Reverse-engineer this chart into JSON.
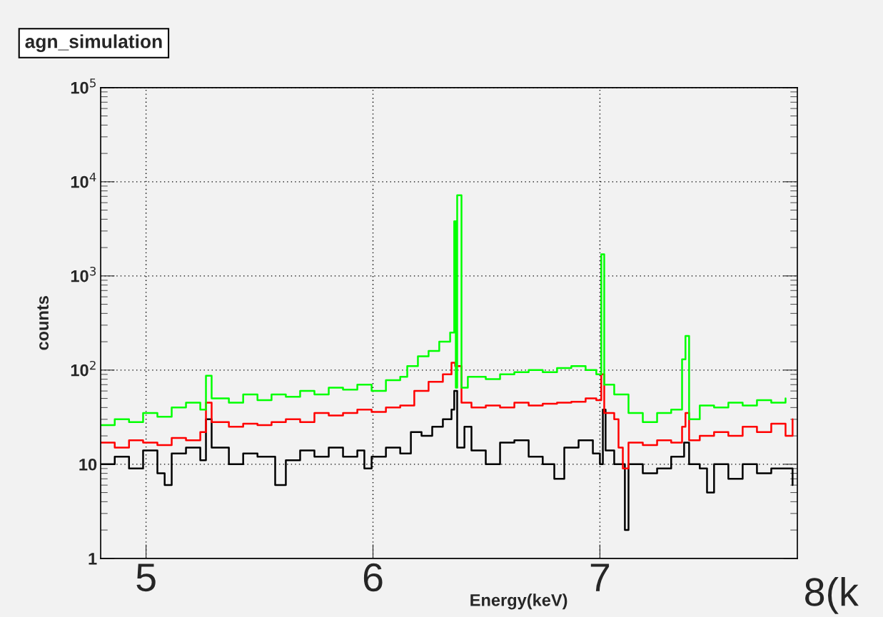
{
  "chart_data": {
    "type": "step",
    "title": "agn_simulation",
    "xlabel": "Energy(keV)",
    "ylabel": "counts",
    "xlim": [
      4.8,
      7.87
    ],
    "xticks": [
      5,
      6,
      7
    ],
    "ylim": [
      1,
      100000
    ],
    "yticks": [
      1,
      10,
      {
        "value": 100,
        "label": "10$^{2}$"
      },
      {
        "value": 1000,
        "label": "10$^{3}$"
      },
      {
        "value": 10000,
        "label": "10$^{4}$"
      },
      {
        "value": 100000,
        "label": "10$^{5}$"
      }
    ],
    "log": "y",
    "grid": true,
    "annotations": [
      "8(k"
    ],
    "series": [
      {
        "color": "#000000",
        "x": [
          4.802,
          4.862,
          4.925,
          4.987,
          5.05,
          5.082,
          5.113,
          5.176,
          5.239,
          5.264,
          5.289,
          5.365,
          5.428,
          5.491,
          5.569,
          5.616,
          5.679,
          5.742,
          5.805,
          5.868,
          5.931,
          5.962,
          5.994,
          6.057,
          6.12,
          6.167,
          6.214,
          6.261,
          6.308,
          6.346,
          6.358,
          6.371,
          6.403,
          6.434,
          6.497,
          6.56,
          6.623,
          6.686,
          6.748,
          6.799,
          6.843,
          6.906,
          6.969,
          7.0,
          7.013,
          7.025,
          7.063,
          7.11,
          7.126,
          7.189,
          7.252,
          7.314,
          7.371,
          7.393,
          7.44,
          7.472,
          7.503,
          7.566,
          7.629,
          7.692,
          7.755,
          7.818,
          7.849
        ],
        "values": [
          10,
          12,
          9,
          14,
          8,
          6,
          13,
          15,
          11,
          30,
          15,
          10,
          13,
          12,
          6,
          11,
          14,
          12,
          15,
          12,
          14,
          9,
          12,
          15,
          13,
          22,
          20,
          25,
          30,
          38,
          60,
          15,
          25,
          14,
          10,
          17,
          18,
          12,
          10,
          7,
          15,
          18,
          13,
          10,
          38,
          14,
          10,
          2,
          10,
          8,
          9,
          12,
          17,
          10,
          9,
          5,
          10,
          7,
          10,
          8,
          9,
          9,
          6
        ]
      },
      {
        "color": "#ff0000",
        "x": [
          4.802,
          4.862,
          4.925,
          4.987,
          5.05,
          5.113,
          5.176,
          5.239,
          5.264,
          5.289,
          5.365,
          5.428,
          5.491,
          5.553,
          5.616,
          5.679,
          5.742,
          5.805,
          5.868,
          5.931,
          5.994,
          6.057,
          6.12,
          6.182,
          6.245,
          6.308,
          6.346,
          6.362,
          6.39,
          6.434,
          6.497,
          6.56,
          6.623,
          6.686,
          6.748,
          6.811,
          6.874,
          6.937,
          6.984,
          7.006,
          7.019,
          7.063,
          7.082,
          7.101,
          7.126,
          7.189,
          7.252,
          7.314,
          7.362,
          7.377,
          7.393,
          7.44,
          7.503,
          7.566,
          7.629,
          7.692,
          7.755,
          7.818,
          7.849
        ],
        "values": [
          17,
          15,
          18,
          17,
          16,
          19,
          18,
          22,
          45,
          28,
          25,
          27,
          26,
          28,
          30,
          28,
          35,
          33,
          35,
          38,
          36,
          40,
          42,
          60,
          75,
          90,
          120,
          110,
          45,
          40,
          42,
          40,
          45,
          42,
          44,
          45,
          46,
          50,
          48,
          90,
          35,
          30,
          15,
          9,
          17,
          16,
          18,
          17,
          25,
          35,
          18,
          20,
          22,
          20,
          25,
          22,
          27,
          20,
          30
        ]
      },
      {
        "color": "#00ff00",
        "x": [
          4.802,
          4.862,
          4.925,
          4.987,
          5.05,
          5.113,
          5.176,
          5.239,
          5.264,
          5.289,
          5.365,
          5.428,
          5.491,
          5.553,
          5.616,
          5.679,
          5.742,
          5.805,
          5.868,
          5.931,
          5.994,
          6.057,
          6.12,
          6.151,
          6.198,
          6.245,
          6.292,
          6.34,
          6.358,
          6.365,
          6.371,
          6.39,
          6.418,
          6.497,
          6.56,
          6.623,
          6.686,
          6.748,
          6.811,
          6.874,
          6.937,
          6.984,
          7.006,
          7.019,
          7.063,
          7.126,
          7.189,
          7.252,
          7.314,
          7.362,
          7.377,
          7.393,
          7.44,
          7.503,
          7.566,
          7.629,
          7.692,
          7.755,
          7.818
        ],
        "values": [
          26,
          30,
          28,
          35,
          32,
          40,
          45,
          38,
          87,
          50,
          45,
          55,
          48,
          55,
          52,
          60,
          55,
          65,
          62,
          70,
          60,
          78,
          85,
          110,
          140,
          160,
          200,
          250,
          3800,
          65,
          7200,
          65,
          85,
          80,
          90,
          95,
          100,
          95,
          105,
          110,
          100,
          90,
          1700,
          70,
          55,
          35,
          28,
          35,
          38,
          130,
          230,
          30,
          42,
          40,
          45,
          42,
          48,
          45,
          50
        ]
      }
    ]
  }
}
